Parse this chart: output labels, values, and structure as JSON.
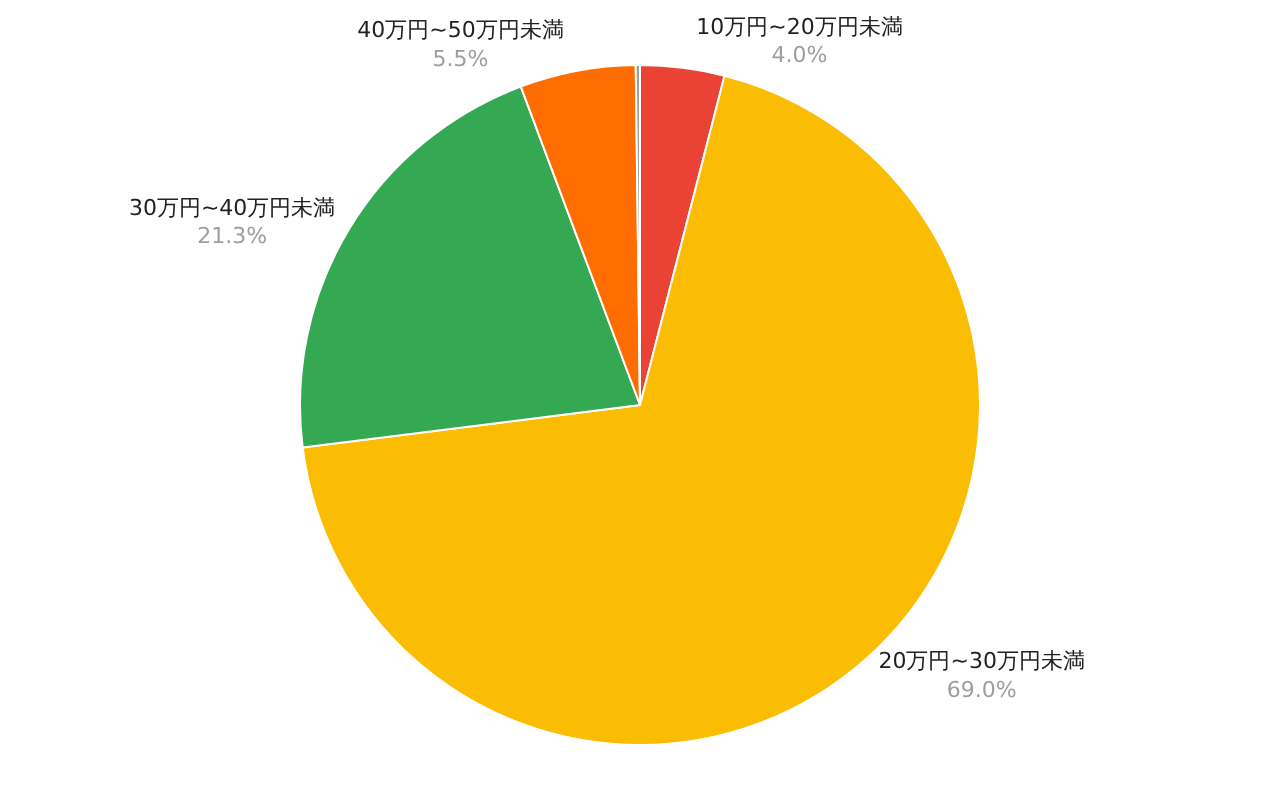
{
  "chart_data": {
    "type": "pie",
    "categories": [
      "10万円~20万円未満",
      "20万円~30万円未満",
      "30万円~40万円未満",
      "40万円~50万円未満",
      null
    ],
    "values": [
      4.0,
      69.0,
      21.3,
      5.5,
      0.2
    ],
    "colors": [
      "#ea4335",
      "#fbbc04",
      "#34a853",
      "#ff6d01",
      "#9e9e9e"
    ],
    "value_labels": [
      "4.0%",
      "69.0%",
      "21.3%",
      "5.5%",
      null
    ],
    "legend": false
  }
}
